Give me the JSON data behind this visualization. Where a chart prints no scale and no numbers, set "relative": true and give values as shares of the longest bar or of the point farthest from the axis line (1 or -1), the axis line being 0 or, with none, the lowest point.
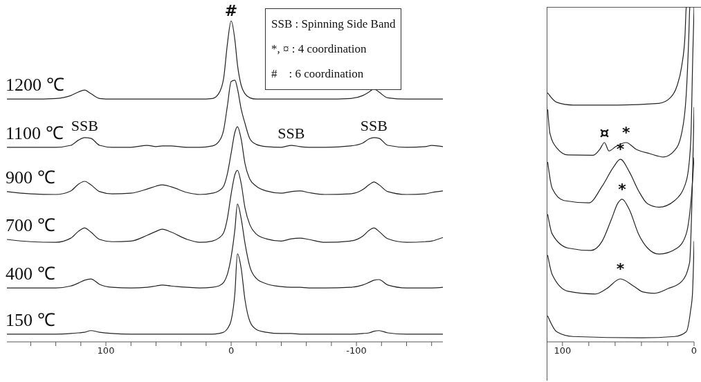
{
  "chart_data": [
    {
      "type": "line",
      "relative": true,
      "tick_labels": "x",
      "xlim": [
        179,
        -169
      ],
      "xticks": [
        {
          "value": 160,
          "label": null
        },
        {
          "value": 140,
          "label": null
        },
        {
          "value": 120,
          "label": null
        },
        100,
        {
          "value": 80,
          "label": null
        },
        {
          "value": 60,
          "label": null
        },
        {
          "value": 40,
          "label": null
        },
        {
          "value": 20,
          "label": null
        },
        0,
        {
          "value": -20,
          "label": null
        },
        {
          "value": -40,
          "label": null
        },
        {
          "value": -60,
          "label": null
        },
        {
          "value": -80,
          "label": null
        },
        -100,
        {
          "value": -120,
          "label": null
        },
        {
          "value": -140,
          "label": null
        },
        {
          "value": -160,
          "label": null
        }
      ],
      "x": [
        179,
        160,
        140,
        128,
        122,
        117,
        112,
        105,
        95,
        80,
        67,
        60,
        55,
        48,
        35,
        25,
        15,
        10,
        6,
        3,
        0,
        -3,
        -5,
        -8,
        -11,
        -15,
        -20,
        -28,
        -40,
        -48,
        -55,
        -62,
        -75,
        -95,
        -105,
        -110,
        -114,
        -118,
        -125,
        -140,
        -155,
        -160,
        -169
      ],
      "series": [
        {
          "name": "1200 ℃",
          "color": "#222222",
          "values": [
            0.756,
            0.756,
            0.758,
            0.767,
            0.778,
            0.784,
            0.773,
            0.758,
            0.756,
            0.756,
            0.756,
            0.756,
            0.756,
            0.756,
            0.756,
            0.756,
            0.758,
            0.773,
            0.821,
            0.928,
            1,
            0.939,
            0.864,
            0.799,
            0.773,
            0.76,
            0.756,
            0.756,
            0.756,
            0.756,
            0.756,
            0.756,
            0.756,
            0.758,
            0.767,
            0.778,
            0.788,
            0.778,
            0.76,
            0.756,
            0.756,
            0.756,
            0.756
          ]
        },
        {
          "name": "1100 ℃",
          "color": "#222222",
          "values": [
            0.606,
            0.606,
            0.606,
            0.612,
            0.628,
            0.636,
            0.634,
            0.612,
            0.606,
            0.606,
            0.612,
            0.608,
            0.61,
            0.61,
            0.606,
            0.606,
            0.61,
            0.623,
            0.66,
            0.735,
            0.811,
            0.815,
            0.789,
            0.725,
            0.681,
            0.632,
            0.615,
            0.608,
            0.606,
            0.612,
            0.608,
            0.606,
            0.606,
            0.61,
            0.619,
            0.632,
            0.636,
            0.634,
            0.612,
            0.606,
            0.608,
            0.612,
            0.608
          ]
        },
        {
          "name": "900 ℃",
          "color": "#222222",
          "values": [
            0.468,
            0.461,
            0.459,
            0.47,
            0.491,
            0.5,
            0.489,
            0.468,
            0.461,
            0.463,
            0.476,
            0.485,
            0.489,
            0.483,
            0.465,
            0.459,
            0.463,
            0.47,
            0.485,
            0.524,
            0.588,
            0.653,
            0.67,
            0.631,
            0.556,
            0.506,
            0.485,
            0.47,
            0.463,
            0.468,
            0.47,
            0.465,
            0.459,
            0.461,
            0.474,
            0.489,
            0.498,
            0.489,
            0.468,
            0.459,
            0.461,
            0.465,
            0.47
          ]
        },
        {
          "name": "700 ℃",
          "color": "#222222",
          "values": [
            0.319,
            0.312,
            0.31,
            0.323,
            0.344,
            0.355,
            0.342,
            0.319,
            0.312,
            0.314,
            0.332,
            0.344,
            0.351,
            0.342,
            0.319,
            0.31,
            0.314,
            0.323,
            0.34,
            0.385,
            0.461,
            0.521,
            0.534,
            0.493,
            0.418,
            0.364,
            0.336,
            0.321,
            0.314,
            0.321,
            0.323,
            0.319,
            0.31,
            0.314,
            0.329,
            0.347,
            0.355,
            0.344,
            0.321,
            0.31,
            0.312,
            0.314,
            0.325
          ]
        },
        {
          "name": "400 ℃",
          "color": "#222222",
          "values": [
            0.168,
            0.168,
            0.168,
            0.174,
            0.183,
            0.192,
            0.196,
            0.179,
            0.17,
            0.168,
            0.17,
            0.174,
            0.177,
            0.174,
            0.17,
            0.168,
            0.17,
            0.174,
            0.185,
            0.211,
            0.265,
            0.351,
            0.429,
            0.384,
            0.308,
            0.233,
            0.198,
            0.181,
            0.172,
            0.17,
            0.17,
            0.168,
            0.168,
            0.17,
            0.177,
            0.185,
            0.192,
            0.194,
            0.177,
            0.168,
            0.168,
            0.168,
            0.17
          ]
        },
        {
          "name": "150 ℃",
          "color": "#222222",
          "values": [
            0.024,
            0.024,
            0.024,
            0.026,
            0.028,
            0.03,
            0.035,
            0.03,
            0.026,
            0.024,
            0.024,
            0.024,
            0.024,
            0.024,
            0.024,
            0.024,
            0.024,
            0.026,
            0.03,
            0.041,
            0.067,
            0.153,
            0.274,
            0.229,
            0.132,
            0.063,
            0.039,
            0.03,
            0.026,
            0.026,
            0.024,
            0.024,
            0.024,
            0.024,
            0.026,
            0.028,
            0.033,
            0.035,
            0.028,
            0.024,
            0.024,
            0.024,
            0.024
          ]
        }
      ],
      "annotations": [
        {
          "text": "#",
          "x": 0,
          "y": 1
        },
        {
          "text": "SSB",
          "x": 117,
          "y": 0.636
        },
        {
          "text": "SSB",
          "x": -48,
          "y": 0.612
        },
        {
          "text": "SSB",
          "x": -114,
          "y": 0.636
        },
        "SSB : Spinning Side Band",
        "*, ¤ : 4 coordination",
        "#    : 6 coordination"
      ]
    },
    {
      "type": "line",
      "relative": true,
      "tick_labels": "x",
      "xlim": [
        112,
        0
      ],
      "xticks": [
        100,
        {
          "value": 80,
          "label": null
        },
        {
          "value": 60,
          "label": null
        },
        {
          "value": 40,
          "label": null
        },
        {
          "value": 20,
          "label": null
        },
        0
      ],
      "series": [
        {
          "color": "#222222",
          "x": [
            111.2,
            104.3,
            92,
            57.8,
            26.7,
            18,
            13,
            9.5,
            6.9,
            6,
            5.8
          ],
          "values": [
            0.743,
            0.715,
            0.707,
            0.707,
            0.712,
            0.729,
            0.764,
            0.821,
            0.914,
            0.996,
            1
          ]
        },
        {
          "color": "#222222",
          "x": [
            111.2,
            109.5,
            104.3,
            95.7,
            76.7,
            71.6,
            68.1,
            64.7,
            59.5,
            51.7,
            44,
            33.6,
            23.3,
            14.7,
            9.5,
            6,
            4,
            3.3,
            3.2
          ],
          "values": [
            0.693,
            0.622,
            0.579,
            0.558,
            0.557,
            0.575,
            0.595,
            0.57,
            0.583,
            0.595,
            0.575,
            0.562,
            0.552,
            0.572,
            0.622,
            0.736,
            0.914,
            0.996,
            1
          ]
        },
        {
          "color": "#222222",
          "x": [
            111.2,
            107.8,
            99,
            80,
            69.8,
            61.2,
            56,
            49.1,
            42.2,
            35.3,
            26.7,
            14.7,
            6,
            2.6,
            0.9,
            0
          ],
          "values": [
            0.536,
            0.458,
            0.422,
            0.415,
            0.465,
            0.522,
            0.545,
            0.507,
            0.451,
            0.412,
            0.402,
            0.422,
            0.479,
            0.593,
            0.868,
            1
          ]
        },
        {
          "color": "#222222",
          "x": [
            111.2,
            107.8,
            95.7,
            78.4,
            69.8,
            62.9,
            57.8,
            54.7,
            49.1,
            42.2,
            35.3,
            26.7,
            12.9,
            6,
            1.7,
            0
          ],
          "values": [
            0.38,
            0.322,
            0.28,
            0.273,
            0.301,
            0.365,
            0.415,
            0.426,
            0.394,
            0.322,
            0.28,
            0.262,
            0.28,
            0.322,
            0.451,
            0.55
          ]
        },
        {
          "color": "#222222",
          "x": [
            111.2,
            107.8,
            95.7,
            75,
            66.4,
            56,
            45.7,
            38.8,
            30.2,
            19.8,
            9.5,
            3.4,
            1.2,
            0
          ],
          "values": [
            0.258,
            0.201,
            0.151,
            0.143,
            0.159,
            0.188,
            0.166,
            0.149,
            0.145,
            0.159,
            0.18,
            0.237,
            0.486,
            0.7
          ]
        },
        {
          "color": "#222222",
          "x": [
            111.2,
            104.3,
            92,
            40,
            14.7,
            6,
            2.6,
            1.2,
            0
          ],
          "values": [
            0.077,
            0.03,
            0.016,
            0.012,
            0.016,
            0.03,
            0.095,
            0.145,
            0.3
          ]
        }
      ],
      "annotations": [
        {
          "text": "¤",
          "x": 68.1,
          "y": 0.595
        },
        {
          "text": "*",
          "x": 51.7,
          "y": 0.595
        },
        {
          "text": "*",
          "x": 56,
          "y": 0.545
        },
        {
          "text": "*",
          "x": 54.7,
          "y": 0.426
        },
        {
          "text": "*",
          "x": 56,
          "y": 0.188
        }
      ]
    }
  ]
}
